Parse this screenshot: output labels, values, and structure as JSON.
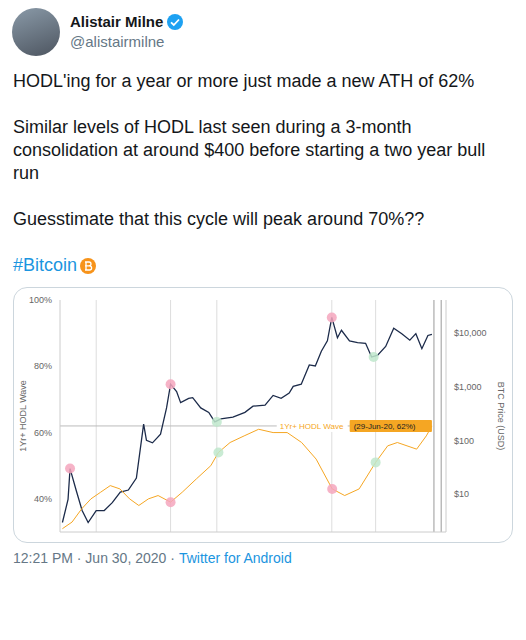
{
  "tweet": {
    "name": "Alistair Milne",
    "handle": "@alistairmilne",
    "text": [
      "HODL'ing for a year or more just made a new ATH of 62%",
      "Similar levels of HODL last seen during a 3-month consolidation at around $400 before starting a two year bull run",
      "Guesstimate that this cycle will peak around 70%??"
    ],
    "hashtag": "#Bitcoin",
    "timestamp": "12:21 PM · Jun 30, 2020 ·",
    "source": "Twitter for Android"
  },
  "chart_data": {
    "type": "line",
    "grid": false,
    "tick_labels": "y",
    "xlim": [
      2011.2,
      2020.8
    ],
    "ylim": [
      30,
      100
    ],
    "yticks": [
      {
        "value": 40,
        "label": "40%"
      },
      {
        "value": 60,
        "label": "60%"
      },
      {
        "value": 80,
        "label": "80%"
      },
      {
        "value": 100,
        "label": "100%"
      }
    ],
    "y_label": "1Yr+ HODL Wave",
    "y2lim": [
      2,
      40000
    ],
    "y2ticks": [
      {
        "value": 10,
        "label": "$10"
      },
      {
        "value": 100,
        "label": "$100"
      },
      {
        "value": 1000,
        "label": "$1,000"
      },
      {
        "value": 10000,
        "label": "$10,000"
      }
    ],
    "y2_label": "BTC Price (USD)",
    "log": "y2",
    "series": [
      {
        "name": "BTC Price (USD)",
        "axis": "y2",
        "color": "#1c2b4a",
        "line_style": "solid",
        "x": [
          2011.26,
          2011.4,
          2011.45,
          2011.6,
          2011.75,
          2011.9,
          2012.1,
          2012.3,
          2012.5,
          2012.7,
          2012.9,
          2013.1,
          2013.28,
          2013.35,
          2013.5,
          2013.7,
          2013.85,
          2013.95,
          2014.1,
          2014.2,
          2014.4,
          2014.5,
          2014.7,
          2014.9,
          2015.05,
          2015.2,
          2015.5,
          2015.8,
          2016.0,
          2016.3,
          2016.5,
          2016.7,
          2016.9,
          2017.0,
          2017.2,
          2017.4,
          2017.55,
          2017.7,
          2017.85,
          2017.96,
          2018.1,
          2018.2,
          2018.4,
          2018.6,
          2018.8,
          2018.95,
          2019.1,
          2019.3,
          2019.5,
          2019.7,
          2019.9,
          2020.05,
          2020.2,
          2020.35,
          2020.45
        ],
        "values": [
          3,
          8,
          30,
          12,
          5,
          3,
          5,
          5,
          7,
          11,
          12,
          20,
          200,
          100,
          90,
          130,
          400,
          1100,
          800,
          500,
          600,
          620,
          400,
          330,
          220,
          250,
          270,
          330,
          430,
          450,
          680,
          600,
          750,
          1000,
          1100,
          2500,
          2400,
          4500,
          7000,
          19000,
          8000,
          11000,
          7000,
          6500,
          6300,
          3500,
          3800,
          5500,
          12000,
          9500,
          7200,
          9500,
          5000,
          8800,
          9200
        ]
      },
      {
        "name": "1Yr+ HODL Wave",
        "axis": "y",
        "color": "#f5a623",
        "line_style": "solid",
        "x": [
          2011.26,
          2011.5,
          2011.74,
          2011.97,
          2012.21,
          2012.45,
          2012.69,
          2012.93,
          2013.16,
          2013.4,
          2013.64,
          2013.95,
          2014.24,
          2014.59,
          2014.95,
          2015.14,
          2015.43,
          2015.78,
          2016.14,
          2016.5,
          2016.85,
          2017.21,
          2017.57,
          2017.97,
          2018.28,
          2018.64,
          2019.05,
          2019.35,
          2019.59,
          2019.83,
          2020.07,
          2020.31,
          2020.45
        ],
        "values": [
          31,
          33,
          37,
          40,
          42,
          44,
          43,
          40,
          38,
          40,
          41,
          39,
          42,
          46,
          50,
          54,
          57,
          59,
          61,
          60,
          60,
          57,
          52,
          43,
          41,
          43,
          51,
          56,
          57,
          56,
          55,
          59,
          62
        ]
      }
    ],
    "vlines": [
      2012.1,
      2013.95,
      2015.1,
      2017.96,
      2019.05,
      2020.5,
      2020.68
    ],
    "markers": [
      {
        "x": 2011.45,
        "value": 30,
        "axis": "y2",
        "color": "#f4a6bd"
      },
      {
        "x": 2013.95,
        "value": 1100,
        "axis": "y2",
        "color": "#f4a6bd"
      },
      {
        "x": 2017.96,
        "value": 19000,
        "axis": "y2",
        "color": "#f4a6bd"
      },
      {
        "x": 2015.1,
        "value": 220,
        "axis": "y2",
        "color": "#bfe8cc"
      },
      {
        "x": 2019.0,
        "value": 3500,
        "axis": "y2",
        "color": "#bfe8cc"
      },
      {
        "x": 2013.95,
        "value": 39,
        "axis": "y",
        "color": "#f4a6bd"
      },
      {
        "x": 2017.97,
        "value": 43,
        "axis": "y",
        "color": "#f4a6bd"
      },
      {
        "x": 2015.14,
        "value": 54,
        "axis": "y",
        "color": "#bfe8cc"
      },
      {
        "x": 2019.05,
        "value": 51,
        "axis": "y",
        "color": "#bfe8cc"
      }
    ],
    "annotation": {
      "x": 2020.45,
      "value": 62,
      "axis": "y",
      "label": "1Yr+ HODL Wave",
      "box": "(29-Jun-20, 62%)",
      "color": "#f5a623"
    }
  }
}
